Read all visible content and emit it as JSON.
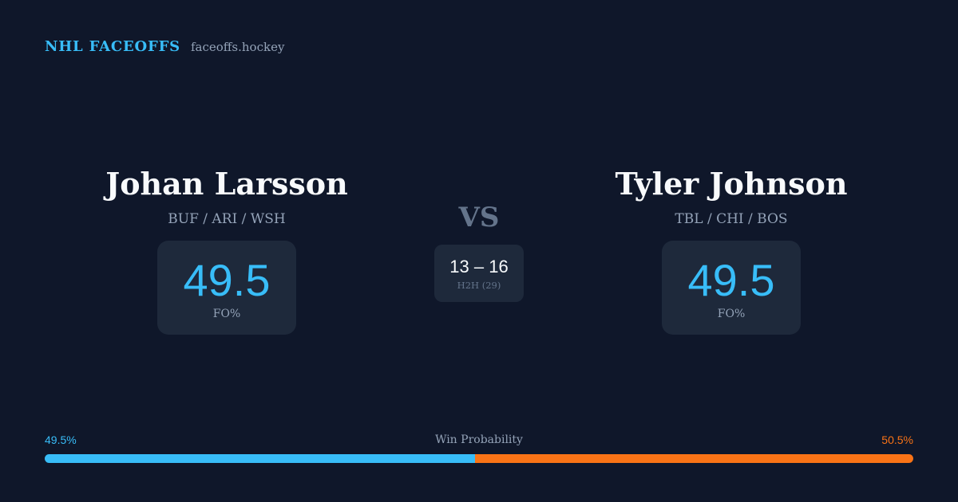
{
  "header": {
    "brand": "NHL FACEOFFS",
    "site": "faceoffs.hockey"
  },
  "player_left": {
    "name": "Johan Larsson",
    "teams": "BUF / ARI / WSH",
    "fo_value": "49.5",
    "fo_label": "FO%"
  },
  "player_right": {
    "name": "Tyler Johnson",
    "teams": "TBL / CHI / BOS",
    "fo_value": "49.5",
    "fo_label": "FO%"
  },
  "matchup": {
    "vs": "VS",
    "h2h_score": "13 – 16",
    "h2h_label": "H2H (29)"
  },
  "win_probability": {
    "title": "Win Probability",
    "left_pct_text": "49.5%",
    "right_pct_text": "50.5%",
    "left_value": 49.5,
    "right_value": 50.5
  },
  "colors": {
    "background": "#0f172a",
    "card": "#1e293b",
    "accent_blue": "#38bdf8",
    "accent_orange": "#f97316",
    "muted": "#94a3b8"
  }
}
